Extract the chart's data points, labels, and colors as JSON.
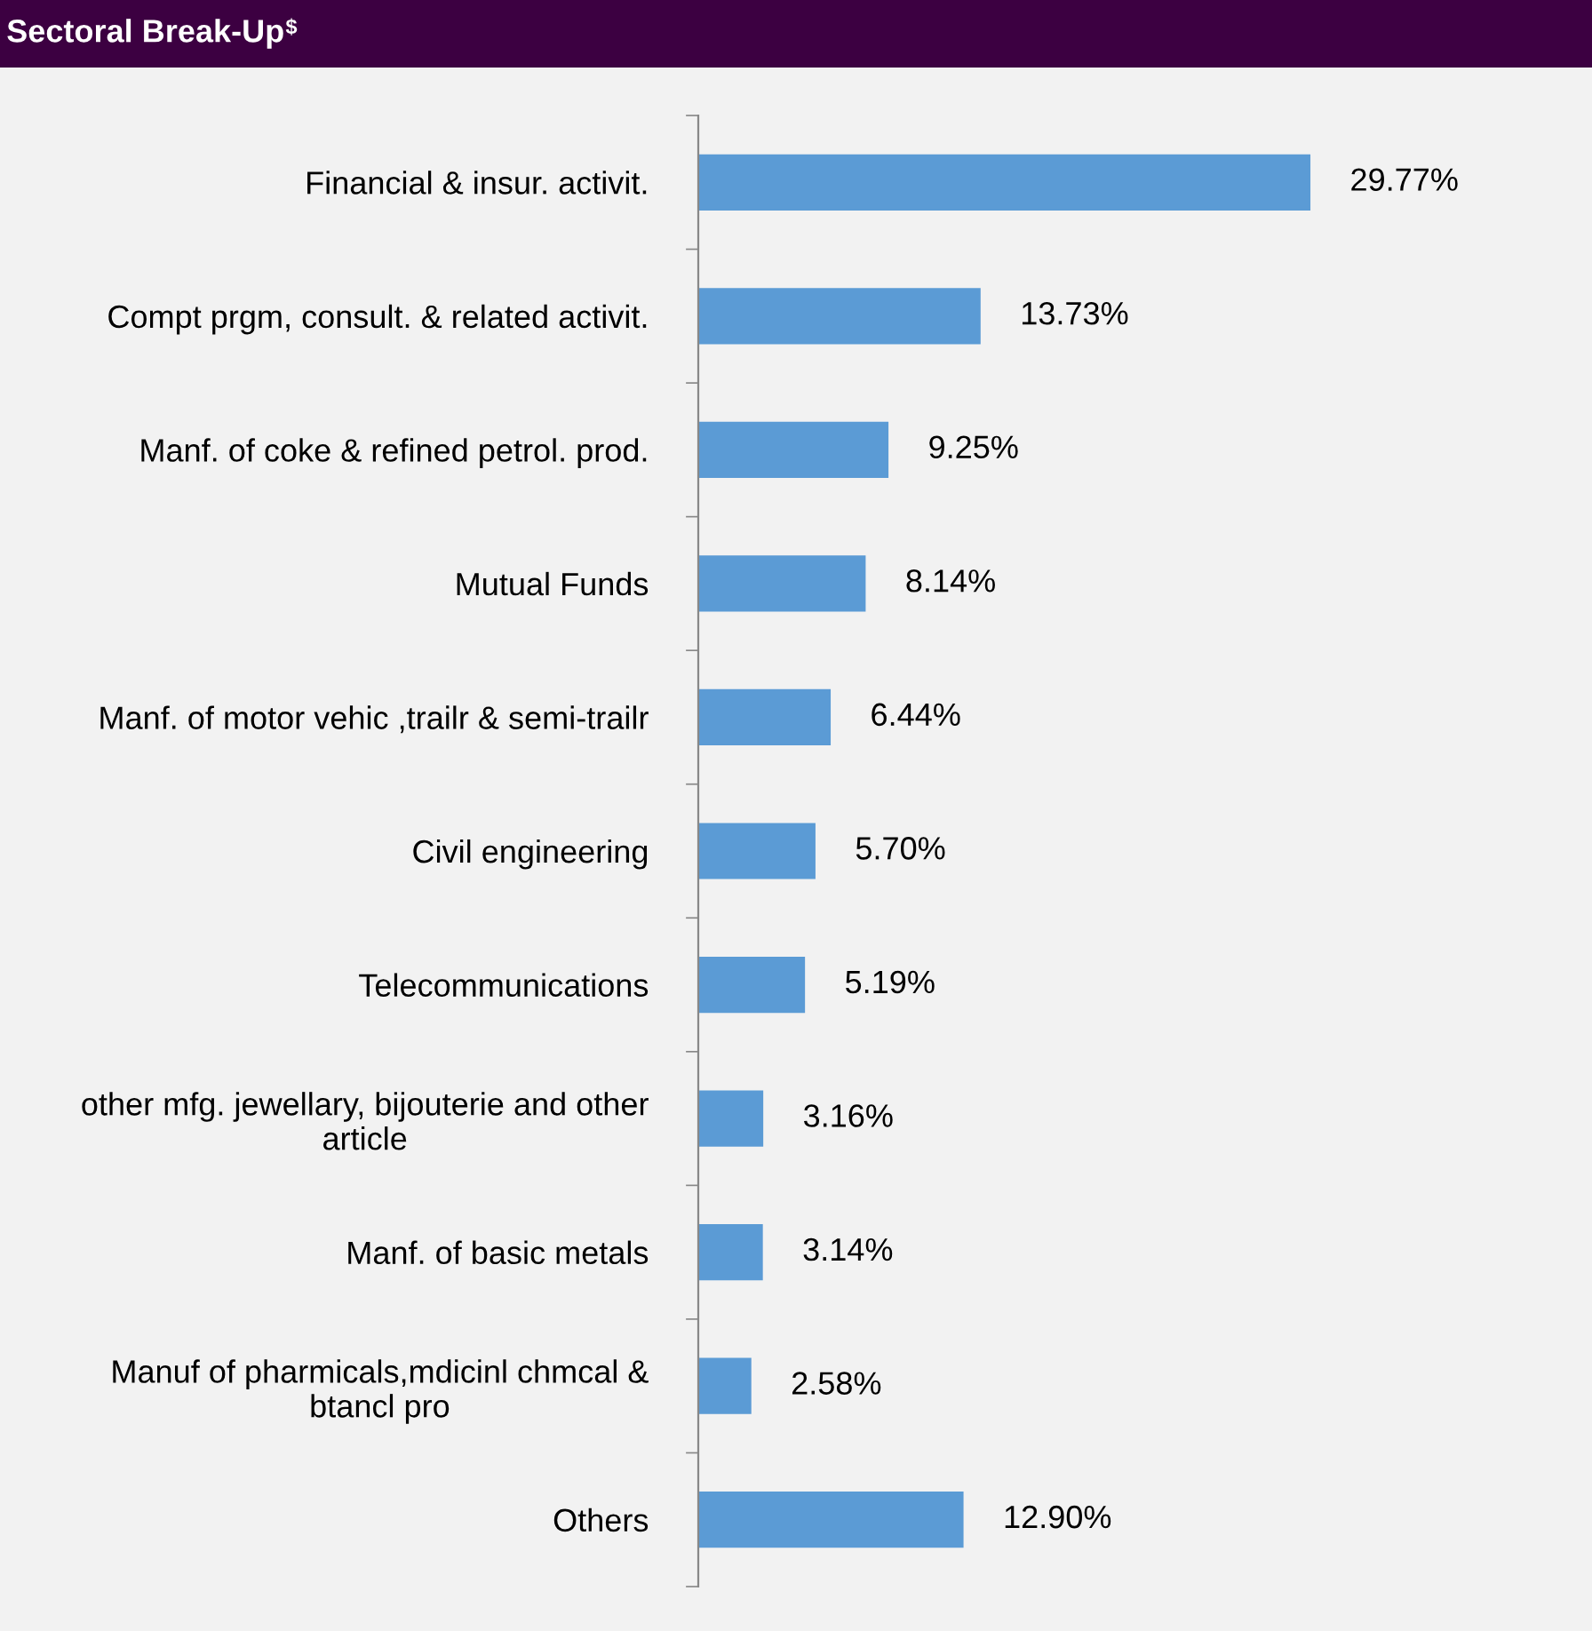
{
  "chart_data": {
    "type": "bar",
    "orientation": "horizontal",
    "title": "Sectoral Break-Up$^{$}$",
    "categories": [
      "Financial & insur. activit.",
      "Compt prgm, consult. & related activit.",
      "Manf. of coke & refined petrol. prod.",
      "Mutual Funds",
      "Manf. of motor vehic ,trailr & semi-trailr",
      "Civil engineering",
      "Telecommunications",
      "other mfg. jewellary, bijouterie and other\narticle",
      "Manf. of basic metals",
      "Manuf of pharmicals,mdicinl chmcal &\nbtancl pro",
      "Others"
    ],
    "values": [
      29.77,
      13.73,
      9.25,
      8.14,
      6.44,
      5.7,
      5.19,
      3.16,
      3.14,
      2.58,
      12.9
    ],
    "value_labels": [
      "29.77%",
      "13.73%",
      "9.25%",
      "8.14%",
      "6.44%",
      "5.70%",
      "5.19%",
      "3.16%",
      "3.14%",
      "2.58%",
      "12.90%"
    ],
    "color": "#5b9bd5",
    "grid": false,
    "legend": false
  }
}
